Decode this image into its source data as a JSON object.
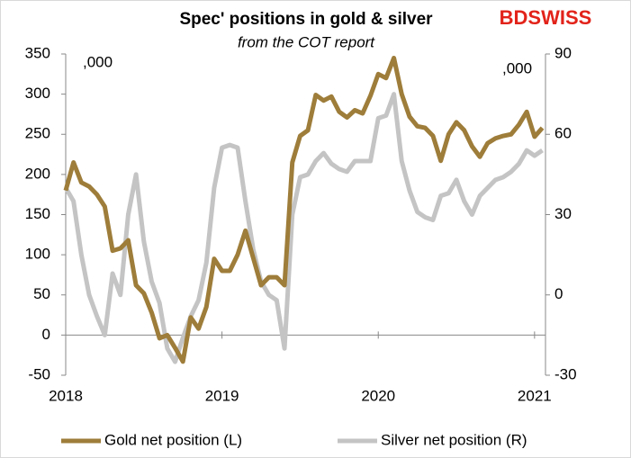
{
  "chart_data": {
    "type": "line",
    "title": "Spec' positions in gold & silver",
    "subtitle": "from the COT report",
    "brand": "BDSWISS",
    "y_unit_label": ",000",
    "y2_unit_label": ",000",
    "x": [
      2018,
      2018.05,
      2018.1,
      2018.15,
      2018.2,
      2018.25,
      2018.3,
      2018.35,
      2018.4,
      2018.45,
      2018.5,
      2018.55,
      2018.6,
      2018.65,
      2018.7,
      2018.75,
      2018.8,
      2018.85,
      2018.9,
      2018.95,
      2019,
      2019.05,
      2019.1,
      2019.15,
      2019.2,
      2019.25,
      2019.3,
      2019.35,
      2019.4,
      2019.45,
      2019.5,
      2019.55,
      2019.6,
      2019.65,
      2019.7,
      2019.75,
      2019.8,
      2019.85,
      2019.9,
      2019.95,
      2020,
      2020.05,
      2020.1,
      2020.15,
      2020.2,
      2020.25,
      2020.3,
      2020.35,
      2020.4,
      2020.45,
      2020.5,
      2020.55,
      2020.6,
      2020.65,
      2020.7,
      2020.75,
      2020.8,
      2020.85,
      2020.9,
      2020.95,
      2021,
      2021.05
    ],
    "xlim": [
      2018,
      2021.07
    ],
    "xticks": [
      2018,
      2019,
      2020,
      2021
    ],
    "ylim": [
      -50,
      350
    ],
    "yticks": [
      -50,
      0,
      50,
      100,
      150,
      200,
      250,
      300,
      350
    ],
    "y2lim": [
      -30,
      90
    ],
    "y2ticks": [
      -30,
      0,
      30,
      60,
      90
    ],
    "legend": "bottom",
    "series": [
      {
        "name": "Gold net position (L)",
        "color": "#9e7d3a",
        "axis": "y",
        "values": [
          180,
          215,
          190,
          185,
          175,
          160,
          105,
          108,
          118,
          62,
          52,
          28,
          -4,
          0,
          -16,
          -33,
          22,
          8,
          35,
          95,
          80,
          80,
          100,
          130,
          96,
          62,
          72,
          72,
          62,
          215,
          248,
          255,
          299,
          292,
          297,
          278,
          271,
          280,
          276,
          298,
          325,
          320,
          345,
          300,
          272,
          260,
          258,
          248,
          217,
          250,
          265,
          255,
          235,
          222,
          239,
          245,
          248,
          250,
          262,
          278,
          247,
          258
        ]
      },
      {
        "name": "Silver net position (R)",
        "color": "#c4c4c4",
        "axis": "y2",
        "values": [
          40,
          35,
          15,
          0,
          -8,
          -15,
          8,
          0,
          30,
          45,
          20,
          5,
          -3,
          -20,
          -25,
          -16,
          -8,
          -2,
          12,
          40,
          55,
          56,
          55,
          35,
          17,
          5,
          0,
          -2,
          -20,
          30,
          44,
          45,
          50,
          53,
          49,
          47,
          46,
          50,
          50,
          50,
          66,
          67,
          75,
          50,
          39,
          31,
          29,
          28,
          37,
          38,
          43,
          35,
          30,
          37,
          40,
          43,
          44,
          46,
          49,
          54,
          52,
          54
        ]
      }
    ]
  }
}
